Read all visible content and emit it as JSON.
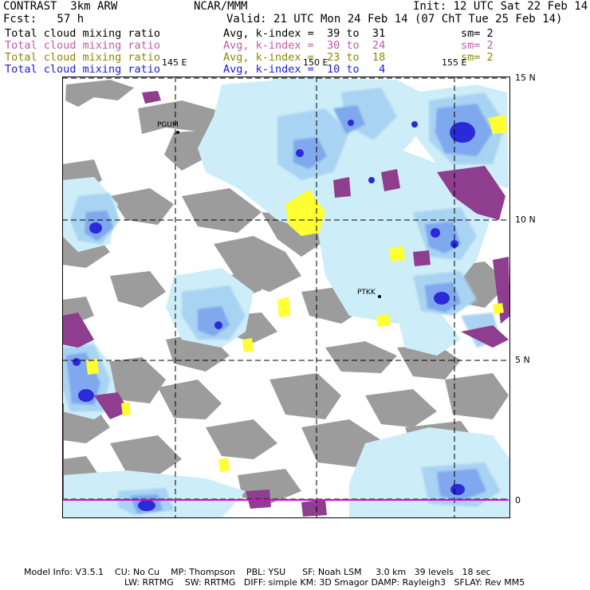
{
  "header": {
    "experiment": "CONTRAST  3km ARW",
    "org": "NCAR/MMM",
    "init": "Init: 12 UTC Sat 22 Feb 14",
    "fcst": "Fcst:   57 h",
    "valid": "Valid: 21 UTC Mon 24 Feb 14 (07 ChT Tue 25 Feb 14)"
  },
  "legend": [
    {
      "field": "Total cloud mixing ratio",
      "stat": "Avg, k-index =  39 to  31",
      "sm": "sm= 2",
      "color": "#000000"
    },
    {
      "field": "Total cloud mixing ratio",
      "stat": "Avg, k-index =  30 to  24",
      "sm": "sm= 2",
      "color": "#c05aa8"
    },
    {
      "field": "Total cloud mixing ratio",
      "stat": "Avg, k-index =  23 to  18",
      "sm": "sm= 2",
      "color": "#8a8a00"
    },
    {
      "field": "Total cloud mixing ratio",
      "stat": "Avg, k-index =  10 to   4",
      "sm": "",
      "color": "#1a1ae0"
    }
  ],
  "axes": {
    "lon_labels": [
      "145 E",
      "150 E",
      "155 E"
    ],
    "lat_labels": [
      "15 N",
      "10 N",
      "5 N",
      "0"
    ]
  },
  "stations": [
    "PGUM",
    "PTKK"
  ],
  "footer": {
    "line1": "Model Info: V3.5.1    CU: No Cu    MP: Thompson    PBL: YSU      SF: Noah LSM     3.0 km   39 levels   18 sec",
    "line2": "LW: RRTMG    SW: RRTMG   DIFF: simple KM: 3D Smagor DAMP: Rayleigh3   SFLAY: Rev MM5"
  },
  "colors": {
    "land": "#9c9c9c",
    "cloud_low": "#cdeef8",
    "cloud_mid": "#a9d3f2",
    "cloud_high": "#7fa8ee",
    "cloud_core": "#2a2ad8",
    "magenta": "#8f3d8f",
    "yellow": "#ffff33",
    "boundary": "#e000e0"
  }
}
